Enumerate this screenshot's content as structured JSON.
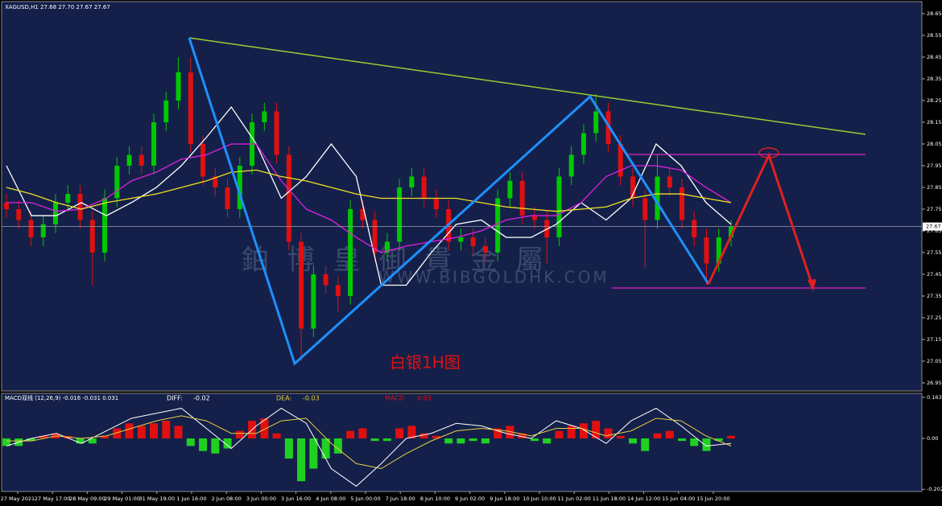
{
  "chart_data": [
    {
      "type": "candlestick",
      "title": "XAGUSD,H1  27.68 27.70 27.67 27.67",
      "annotation": "白银1H图",
      "watermark": "鉑 博 皇 御 貴 金 屬",
      "watermark_url": "WWW.BIBGOLDHK.COM",
      "up_color": "#00c800",
      "down_color": "#e01010",
      "ylim": [
        26.913,
        28.698
      ],
      "yticks": [
        28.65,
        28.55,
        28.45,
        28.35,
        28.25,
        28.15,
        28.05,
        27.95,
        27.85,
        27.75,
        27.65,
        27.55,
        27.45,
        27.35,
        27.25,
        27.15,
        27.05,
        26.95
      ],
      "last": 27.67,
      "candles": [
        [
          27.78,
          27.82,
          27.71,
          27.75
        ],
        [
          27.75,
          27.79,
          27.66,
          27.7
        ],
        [
          27.7,
          27.74,
          27.58,
          27.62
        ],
        [
          27.62,
          27.72,
          27.58,
          27.68
        ],
        [
          27.68,
          27.82,
          27.64,
          27.78
        ],
        [
          27.78,
          27.86,
          27.74,
          27.82
        ],
        [
          27.82,
          27.86,
          27.66,
          27.7
        ],
        [
          27.7,
          27.74,
          27.4,
          27.55
        ],
        [
          27.55,
          27.84,
          27.51,
          27.8
        ],
        [
          27.8,
          27.99,
          27.76,
          27.95
        ],
        [
          27.95,
          28.04,
          27.91,
          28.0
        ],
        [
          28.0,
          28.04,
          27.91,
          27.95
        ],
        [
          27.95,
          28.19,
          27.91,
          28.15
        ],
        [
          28.15,
          28.29,
          28.11,
          28.25
        ],
        [
          28.25,
          28.45,
          28.21,
          28.38
        ],
        [
          28.38,
          28.45,
          28.01,
          28.05
        ],
        [
          28.05,
          28.09,
          27.86,
          27.9
        ],
        [
          27.9,
          27.94,
          27.81,
          27.85
        ],
        [
          27.85,
          27.89,
          27.71,
          27.75
        ],
        [
          27.75,
          27.99,
          27.71,
          27.95
        ],
        [
          27.95,
          28.19,
          27.91,
          28.15
        ],
        [
          28.15,
          28.24,
          28.11,
          28.2
        ],
        [
          28.2,
          28.24,
          27.96,
          28.0
        ],
        [
          28.0,
          28.04,
          27.56,
          27.6
        ],
        [
          27.6,
          27.64,
          27.05,
          27.2
        ],
        [
          27.2,
          27.49,
          27.16,
          27.45
        ],
        [
          27.45,
          27.49,
          27.36,
          27.4
        ],
        [
          27.4,
          27.44,
          27.28,
          27.35
        ],
        [
          27.35,
          27.79,
          27.31,
          27.75
        ],
        [
          27.75,
          27.79,
          27.66,
          27.7
        ],
        [
          27.7,
          27.74,
          27.51,
          27.55
        ],
        [
          27.55,
          27.64,
          27.51,
          27.6
        ],
        [
          27.6,
          27.89,
          27.56,
          27.85
        ],
        [
          27.85,
          27.94,
          27.81,
          27.9
        ],
        [
          27.9,
          27.94,
          27.76,
          27.8
        ],
        [
          27.8,
          27.84,
          27.71,
          27.75
        ],
        [
          27.75,
          27.79,
          27.56,
          27.6
        ],
        [
          27.6,
          27.66,
          27.56,
          27.62
        ],
        [
          27.62,
          27.66,
          27.54,
          27.58
        ],
        [
          27.58,
          27.62,
          27.51,
          27.55
        ],
        [
          27.55,
          27.84,
          27.51,
          27.8
        ],
        [
          27.8,
          27.92,
          27.76,
          27.88
        ],
        [
          27.88,
          27.92,
          27.68,
          27.72
        ],
        [
          27.72,
          27.76,
          27.66,
          27.7
        ],
        [
          27.7,
          27.74,
          27.5,
          27.62
        ],
        [
          27.62,
          27.94,
          27.58,
          27.9
        ],
        [
          27.9,
          28.04,
          27.86,
          28.0
        ],
        [
          28.0,
          28.14,
          27.96,
          28.1
        ],
        [
          28.1,
          28.28,
          28.06,
          28.2
        ],
        [
          28.2,
          28.24,
          28.01,
          28.05
        ],
        [
          28.05,
          28.09,
          27.86,
          27.9
        ],
        [
          27.9,
          27.94,
          27.76,
          27.8
        ],
        [
          27.8,
          27.84,
          27.48,
          27.7
        ],
        [
          27.7,
          28.0,
          27.66,
          27.9
        ],
        [
          27.9,
          27.94,
          27.81,
          27.85
        ],
        [
          27.85,
          27.89,
          27.66,
          27.7
        ],
        [
          27.7,
          27.74,
          27.58,
          27.62
        ],
        [
          27.62,
          27.66,
          27.4,
          27.5
        ],
        [
          27.5,
          27.66,
          27.46,
          27.62
        ],
        [
          27.62,
          27.7,
          27.58,
          27.67
        ]
      ],
      "overlays": [
        {
          "color": "#ffffff",
          "values": [
            27.95,
            27.72,
            27.72,
            27.78,
            27.72,
            27.78,
            27.85,
            27.95,
            28.08,
            28.22,
            28.05,
            27.8,
            27.9,
            28.05,
            27.9,
            27.4,
            27.4,
            27.55,
            27.68,
            27.7,
            27.62,
            27.62,
            27.68,
            27.78,
            27.7,
            27.8,
            28.05,
            27.95,
            27.78,
            27.68
          ]
        },
        {
          "color": "#e020e0",
          "values": [
            27.78,
            27.78,
            27.74,
            27.75,
            27.8,
            27.88,
            27.92,
            27.98,
            28.0,
            28.05,
            28.05,
            27.88,
            27.75,
            27.7,
            27.62,
            27.55,
            27.58,
            27.6,
            27.62,
            27.65,
            27.7,
            27.72,
            27.72,
            27.78,
            27.9,
            27.95,
            27.95,
            27.93,
            27.85,
            27.78
          ]
        },
        {
          "color": "#f0e020",
          "values": [
            27.85,
            27.82,
            27.78,
            27.75,
            27.78,
            27.8,
            27.82,
            27.85,
            27.88,
            27.92,
            27.93,
            27.9,
            27.88,
            27.85,
            27.82,
            27.8,
            27.8,
            27.8,
            27.8,
            27.78,
            27.76,
            27.75,
            27.74,
            27.75,
            27.76,
            27.8,
            27.82,
            27.82,
            27.8,
            27.78
          ]
        }
      ]
    },
    {
      "type": "macd",
      "title": "MACD双线 (12,26,9) -0.016 -0.031 0.031",
      "diff_label": "DIFF:",
      "diff_value": -0.02,
      "dea_label": "DEA:",
      "dea_value": -0.03,
      "macd_label": "MACD",
      "macd_value": 0.03,
      "pos_color": "#e01010",
      "neg_color": "#20d020",
      "ylim": [
        -0.211,
        0.179
      ],
      "yticks": [
        0.163,
        {
          "value": 0,
          "label": "0.00"
        },
        -0.202
      ],
      "histogram": [
        -0.03,
        -0.03,
        -0.01,
        0.01,
        0.02,
        0.01,
        -0.02,
        -0.02,
        0.01,
        0.04,
        0.06,
        0.05,
        0.06,
        0.07,
        0.05,
        -0.03,
        -0.05,
        -0.06,
        -0.04,
        0.03,
        0.07,
        0.08,
        0.02,
        -0.08,
        -0.17,
        -0.12,
        -0.08,
        -0.06,
        0.03,
        0.04,
        -0.01,
        -0.01,
        0.04,
        0.05,
        0.02,
        0.01,
        -0.02,
        -0.02,
        -0.01,
        -0.02,
        0.04,
        0.05,
        0.02,
        -0.01,
        -0.02,
        0.03,
        0.05,
        0.06,
        0.07,
        0.04,
        0.01,
        -0.02,
        -0.05,
        0.02,
        0.03,
        -0.01,
        -0.03,
        -0.05,
        -0.01,
        0.01
      ],
      "lines": [
        {
          "color": "#ffffff",
          "values": [
            -0.03,
            0.0,
            0.02,
            -0.02,
            0.03,
            0.08,
            0.1,
            0.12,
            0.04,
            -0.04,
            0.05,
            0.12,
            0.06,
            -0.12,
            -0.19,
            -0.1,
            0.0,
            0.02,
            0.06,
            0.05,
            0.02,
            0.0,
            0.07,
            0.04,
            -0.02,
            0.07,
            0.12,
            0.05,
            -0.03,
            -0.02
          ]
        },
        {
          "color": "#e8d040",
          "values": [
            -0.01,
            -0.01,
            0.01,
            0.0,
            0.01,
            0.04,
            0.07,
            0.09,
            0.07,
            0.02,
            0.02,
            0.07,
            0.08,
            -0.02,
            -0.1,
            -0.12,
            -0.06,
            -0.01,
            0.03,
            0.04,
            0.03,
            0.01,
            0.04,
            0.04,
            0.01,
            0.03,
            0.08,
            0.07,
            0.01,
            -0.03
          ]
        }
      ],
      "time_labels": [
        "27 May 2021",
        "27 May 17:00",
        "28 May 09:00",
        "29 May 01:00",
        "31 May 19:00",
        "1 Jun 16:00",
        "2 Jun 08:00",
        "3 Jun 00:00",
        "3 Jun 16:00",
        "4 Jun 08:00",
        "5 Jun 00:00",
        "7 Jun 18:00",
        "8 Jun 10:00",
        "9 Jun 02:00",
        "9 Jun 18:00",
        "10 Jun 10:00",
        "11 Jun 02:00",
        "11 Jun 18:00",
        "14 Jun 12:00",
        "15 Jun 04:00",
        "15 Jun 20:00"
      ]
    }
  ]
}
